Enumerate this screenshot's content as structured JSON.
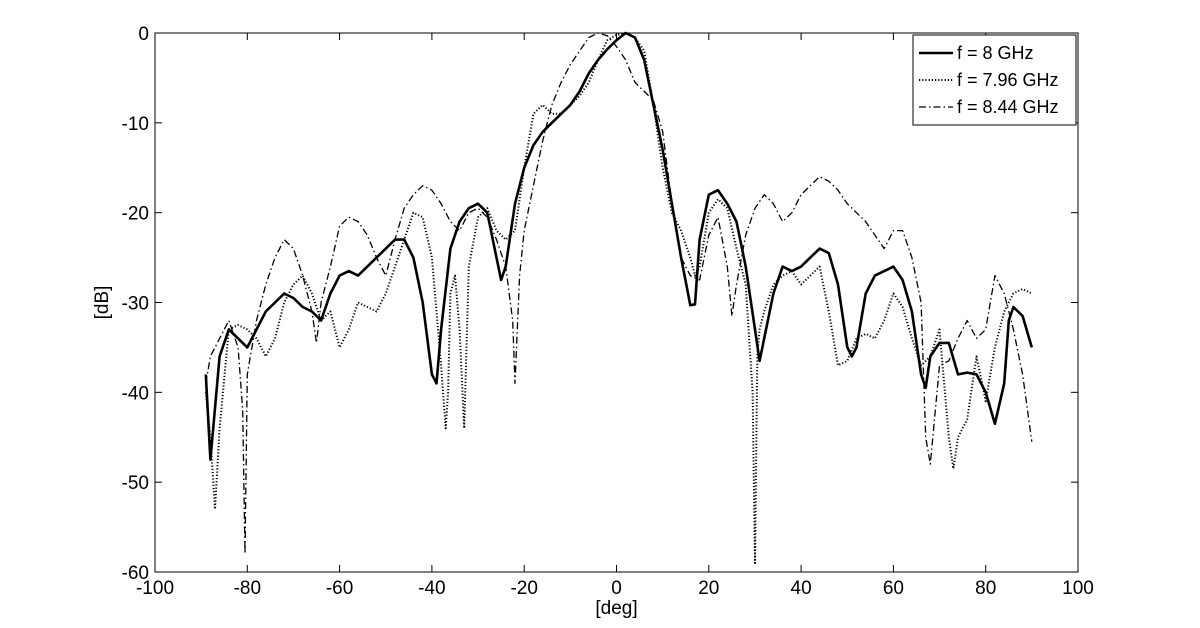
{
  "chart_data": {
    "type": "line",
    "title": "",
    "xlabel": "[deg]",
    "ylabel": "[dB]",
    "xlim": [
      -100,
      100
    ],
    "ylim": [
      -60,
      0
    ],
    "xticks": [
      -100,
      -80,
      -60,
      -40,
      -20,
      0,
      20,
      40,
      60,
      80,
      100
    ],
    "yticks": [
      0,
      -10,
      -20,
      -30,
      -40,
      -50,
      -60
    ],
    "grid": false,
    "legend_position": "top-right",
    "series": [
      {
        "name": "f = 8 GHz",
        "style": "solid",
        "color": "#000000",
        "x": [
          -89,
          -88,
          -86,
          -84,
          -82,
          -80,
          -78,
          -76,
          -74,
          -72,
          -70,
          -68,
          -66,
          -64,
          -62,
          -60,
          -58,
          -56,
          -54,
          -52,
          -50,
          -48,
          -46,
          -44,
          -42,
          -40,
          -39,
          -38,
          -36,
          -34,
          -32,
          -30,
          -28,
          -26,
          -25,
          -24,
          -22,
          -20,
          -18,
          -16,
          -14,
          -12,
          -10,
          -8,
          -6,
          -4,
          -2,
          0,
          2,
          4,
          6,
          8,
          10,
          12,
          14,
          16,
          17,
          18,
          20,
          22,
          24,
          26,
          28,
          30,
          31,
          32,
          34,
          36,
          38,
          40,
          42,
          44,
          46,
          48,
          50,
          51,
          52,
          54,
          56,
          58,
          60,
          62,
          64,
          66,
          67,
          68,
          70,
          72,
          74,
          76,
          78,
          80,
          82,
          84,
          85,
          86,
          88,
          90
        ],
        "values": [
          -38,
          -47.5,
          -36,
          -33,
          -34,
          -35,
          -33,
          -31,
          -30,
          -29,
          -29.5,
          -30.5,
          -31,
          -32,
          -29,
          -27,
          -26.5,
          -27,
          -26,
          -25,
          -24,
          -23,
          -23,
          -25,
          -30,
          -38,
          -39,
          -33,
          -24,
          -21,
          -19.5,
          -19,
          -20,
          -25,
          -27.5,
          -26,
          -19,
          -15,
          -12.5,
          -11,
          -10,
          -9,
          -8,
          -6.5,
          -4.5,
          -3,
          -1.8,
          -0.8,
          0,
          -0.5,
          -3,
          -8,
          -13,
          -19,
          -25,
          -30.3,
          -30.2,
          -23,
          -18,
          -17.5,
          -19,
          -21,
          -26,
          -33,
          -36.5,
          -34,
          -29,
          -26,
          -26.5,
          -26,
          -25,
          -24,
          -24.5,
          -28,
          -35,
          -36,
          -35,
          -29,
          -27,
          -26.5,
          -26,
          -27.5,
          -31,
          -38,
          -39.5,
          -36,
          -34.5,
          -34.5,
          -38,
          -37.8,
          -38,
          -40,
          -43.5,
          -39,
          -32,
          -30.5,
          -31.5,
          -35
        ]
      },
      {
        "name": "f = 7.96 GHz",
        "style": "dotted",
        "color": "#000000",
        "x": [
          -89,
          -88,
          -87,
          -86,
          -84,
          -82,
          -80,
          -78,
          -76,
          -74,
          -72,
          -70,
          -68,
          -66,
          -64,
          -62,
          -60,
          -58,
          -56,
          -54,
          -52,
          -50,
          -48,
          -46,
          -44,
          -42,
          -40,
          -38,
          -37,
          -36.5,
          -36,
          -35,
          -34,
          -33,
          -32,
          -30,
          -28,
          -26,
          -24,
          -22,
          -20,
          -18,
          -16,
          -14,
          -12,
          -10,
          -8,
          -6,
          -4,
          -2,
          0,
          2,
          4,
          6,
          8,
          10,
          12,
          14,
          16,
          17,
          18,
          20,
          22,
          24,
          26,
          28,
          29.5,
          30,
          30.5,
          31,
          32,
          34,
          36,
          38,
          40,
          42,
          44,
          46,
          48,
          50,
          52,
          54,
          56,
          58,
          60,
          62,
          64,
          66,
          68,
          70,
          72,
          73,
          74,
          76,
          78,
          80,
          82,
          84,
          86,
          88,
          90
        ],
        "values": [
          -40,
          -45,
          -53,
          -44,
          -33,
          -32.5,
          -33,
          -34,
          -36,
          -34,
          -30,
          -28,
          -27,
          -29,
          -32,
          -31,
          -35,
          -33,
          -30,
          -30.5,
          -31,
          -29,
          -26,
          -23,
          -20,
          -20.5,
          -25,
          -37,
          -44,
          -40,
          -29,
          -27,
          -33,
          -44,
          -26,
          -20.5,
          -19.5,
          -22,
          -23,
          -22,
          -15,
          -9,
          -8,
          -9,
          -9,
          -8,
          -7,
          -5.5,
          -3,
          -0.8,
          -0.2,
          0,
          -0.5,
          -2,
          -8,
          -15,
          -20,
          -22,
          -25,
          -27,
          -26,
          -20,
          -18.5,
          -19.5,
          -24,
          -28,
          -40,
          -59,
          -36,
          -33,
          -31,
          -28,
          -27,
          -26.5,
          -28,
          -27,
          -26,
          -31,
          -37,
          -36.5,
          -34,
          -33.5,
          -34,
          -32,
          -29,
          -30.5,
          -34,
          -37,
          -36,
          -33,
          -45,
          -48.5,
          -45,
          -43,
          -36,
          -41,
          -35,
          -31,
          -29,
          -28.5,
          -29
        ]
      },
      {
        "name": "f = 8.44 GHz",
        "style": "dashdot",
        "color": "#000000",
        "x": [
          -89,
          -88,
          -86,
          -84,
          -82,
          -81,
          -80.5,
          -80,
          -78,
          -76,
          -74,
          -72,
          -70,
          -68,
          -66,
          -65,
          -64,
          -62,
          -60,
          -58,
          -56,
          -54,
          -52,
          -50,
          -48,
          -46,
          -44,
          -42,
          -40,
          -38,
          -36,
          -34,
          -32,
          -30,
          -28,
          -26,
          -24,
          -22.5,
          -22,
          -21,
          -20,
          -18,
          -16,
          -14,
          -12,
          -10,
          -8,
          -6,
          -4,
          -2,
          0,
          2,
          4,
          6,
          8,
          10,
          12,
          14,
          16,
          18,
          20,
          22,
          24,
          25,
          26,
          28,
          30,
          32,
          34,
          36,
          38,
          40,
          42,
          44,
          46,
          48,
          50,
          52,
          54,
          56,
          58,
          60,
          62,
          64,
          66,
          67,
          68,
          70,
          72,
          74,
          76,
          78,
          80,
          82,
          84,
          86,
          88,
          90
        ],
        "values": [
          -39,
          -36,
          -34,
          -32,
          -35,
          -42,
          -58,
          -38,
          -32,
          -28,
          -25,
          -23,
          -24,
          -27,
          -31,
          -34.5,
          -30,
          -26,
          -21.5,
          -20.5,
          -21,
          -22.5,
          -25,
          -27,
          -23,
          -19.5,
          -18,
          -17,
          -17.5,
          -19,
          -21,
          -22,
          -20,
          -19.5,
          -20.5,
          -23,
          -26,
          -32,
          -39,
          -27,
          -22,
          -17,
          -12,
          -8,
          -5.5,
          -3.5,
          -2,
          -0.5,
          0,
          -0.3,
          -1.5,
          -3,
          -5.5,
          -6.5,
          -7.5,
          -11,
          -19,
          -25,
          -27,
          -27.5,
          -22.5,
          -20.5,
          -26,
          -31.5,
          -28,
          -22.5,
          -19.5,
          -18,
          -19,
          -21,
          -20,
          -18,
          -17,
          -16,
          -16.5,
          -17.5,
          -19,
          -20,
          -21,
          -22.5,
          -24,
          -22,
          -22,
          -25,
          -30,
          -45,
          -48,
          -37,
          -36.5,
          -34,
          -32,
          -34,
          -33,
          -27,
          -29,
          -33,
          -38,
          -45.5
        ]
      }
    ]
  }
}
